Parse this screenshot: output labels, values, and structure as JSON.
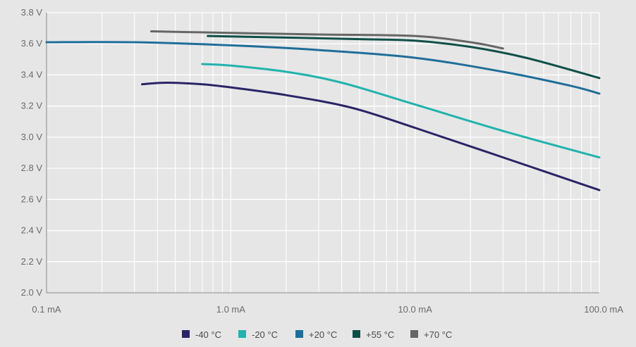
{
  "chart_data": {
    "type": "line",
    "title": "",
    "xlabel": "",
    "ylabel": "",
    "x_scale": "log",
    "xlim": [
      0.1,
      100
    ],
    "ylim": [
      2.0,
      3.8
    ],
    "grid": true,
    "legend_position": "bottom-center",
    "x_ticks": [
      {
        "value": 0.1,
        "label": "0.1 mA"
      },
      {
        "value": 1,
        "label": "1.0 mA"
      },
      {
        "value": 10,
        "label": "10.0 mA"
      },
      {
        "value": 100,
        "label": "100.0 mA"
      }
    ],
    "y_ticks": [
      {
        "value": 2.0,
        "label": "2.0 V"
      },
      {
        "value": 2.2,
        "label": "2.2 V"
      },
      {
        "value": 2.4,
        "label": "2.4 V"
      },
      {
        "value": 2.6,
        "label": "2.6 V"
      },
      {
        "value": 2.8,
        "label": "2.8 V"
      },
      {
        "value": 3.0,
        "label": "3.0 V"
      },
      {
        "value": 3.2,
        "label": "3.2 V"
      },
      {
        "value": 3.4,
        "label": "3.4 V"
      },
      {
        "value": 3.6,
        "label": "3.6 V"
      },
      {
        "value": 3.8,
        "label": "3.8 V"
      }
    ],
    "series": [
      {
        "name": "-40 °C",
        "color": "#2a2466",
        "x": [
          0.33,
          0.45,
          0.7,
          1.0,
          2.0,
          4.5,
          10,
          30,
          100
        ],
        "y": [
          3.34,
          3.35,
          3.34,
          3.32,
          3.27,
          3.19,
          3.06,
          2.87,
          2.66
        ]
      },
      {
        "name": "-20 °C",
        "color": "#21b3ac",
        "x": [
          0.7,
          1.0,
          2.0,
          4.0,
          10,
          30,
          100
        ],
        "y": [
          3.47,
          3.46,
          3.42,
          3.35,
          3.21,
          3.04,
          2.87
        ]
      },
      {
        "name": "+20 °C",
        "color": "#1f6e99",
        "x": [
          0.1,
          0.3,
          1.0,
          3.0,
          10,
          30,
          70,
          100
        ],
        "y": [
          3.61,
          3.61,
          3.59,
          3.56,
          3.51,
          3.42,
          3.33,
          3.28
        ]
      },
      {
        "name": "+55 °C",
        "color": "#0f4f48",
        "x": [
          0.75,
          2,
          5,
          10,
          20,
          40,
          100
        ],
        "y": [
          3.65,
          3.64,
          3.63,
          3.62,
          3.58,
          3.51,
          3.38
        ]
      },
      {
        "name": "+70 °C",
        "color": "#666666",
        "x": [
          0.37,
          1,
          3,
          10,
          20,
          30
        ],
        "y": [
          3.68,
          3.67,
          3.66,
          3.65,
          3.61,
          3.57
        ]
      }
    ]
  }
}
